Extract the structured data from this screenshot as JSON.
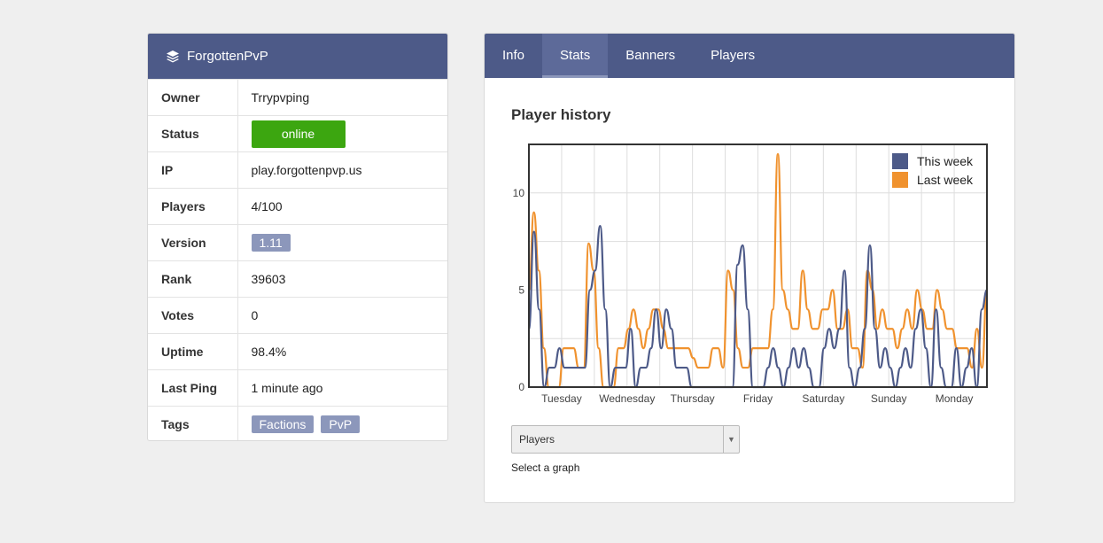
{
  "server": {
    "name": "ForgottenPvP",
    "rows": [
      {
        "label": "Owner",
        "value": "Trrypvping"
      },
      {
        "label": "Status",
        "value": "online"
      },
      {
        "label": "IP",
        "value": "play.forgottenpvp.us"
      },
      {
        "label": "Players",
        "value": "4/100"
      },
      {
        "label": "Version",
        "value": "1.11"
      },
      {
        "label": "Rank",
        "value": "39603"
      },
      {
        "label": "Votes",
        "value": "0"
      },
      {
        "label": "Uptime",
        "value": "98.4%"
      },
      {
        "label": "Last Ping",
        "value": "1 minute ago"
      },
      {
        "label": "Tags",
        "tags": [
          "Factions",
          "PvP"
        ]
      }
    ],
    "status_color": "#3ca610"
  },
  "tabs": [
    {
      "label": "Info",
      "active": false
    },
    {
      "label": "Stats",
      "active": true
    },
    {
      "label": "Banners",
      "active": false
    },
    {
      "label": "Players",
      "active": false
    }
  ],
  "stats": {
    "title": "Player history",
    "select_value": "Players",
    "select_help": "Select a graph"
  },
  "chart_data": {
    "type": "line",
    "title": "Player history",
    "x_labels": [
      "Tuesday",
      "Wednesday",
      "Thursday",
      "Friday",
      "Saturday",
      "Sunday",
      "Monday"
    ],
    "ylim": [
      0,
      12.5
    ],
    "yticks": [
      0,
      5,
      10
    ],
    "grid": true,
    "legend": "top-right",
    "series": [
      {
        "name": "This week",
        "color": "#4d5a88",
        "values": [
          3,
          8,
          4,
          0,
          1,
          1,
          2,
          1,
          1,
          1,
          1,
          1,
          5,
          6,
          8.3,
          4,
          0,
          1,
          1,
          1,
          3,
          0,
          1,
          1,
          2,
          4,
          2,
          4,
          3,
          1,
          1,
          1,
          0,
          0,
          0,
          0,
          0,
          0,
          0,
          0,
          0,
          6.3,
          7.3,
          4,
          0,
          0,
          0,
          1,
          2,
          1,
          0,
          1,
          2,
          1,
          2,
          1,
          0,
          0,
          2,
          3,
          2,
          3,
          6,
          1,
          0,
          1,
          3,
          7.3,
          3,
          1,
          2,
          1,
          0,
          1,
          2,
          1,
          3,
          4,
          2,
          0,
          4,
          1,
          0,
          0,
          2,
          0,
          1,
          2,
          0,
          4,
          5
        ]
      },
      {
        "name": "Last week",
        "color": "#f0922e",
        "values": [
          5,
          9,
          6,
          2,
          0,
          0,
          0,
          2,
          2,
          2,
          1,
          1,
          7.4,
          6,
          2,
          0,
          0,
          0,
          2,
          2,
          3,
          4,
          3,
          2,
          3,
          4,
          4,
          3,
          2,
          2,
          2,
          2,
          2,
          1.5,
          1,
          1,
          1,
          2,
          2,
          1,
          6,
          5,
          2,
          1,
          1,
          2,
          2,
          2,
          2,
          4,
          12,
          5,
          4,
          3,
          3,
          6,
          4,
          3,
          3,
          4,
          4,
          5,
          3,
          3,
          4,
          2,
          2,
          1,
          6,
          5,
          3,
          4,
          3,
          3,
          2,
          3,
          4,
          3,
          5,
          4,
          3,
          3,
          5,
          4,
          3,
          3,
          2,
          2,
          2,
          1,
          3,
          1,
          5
        ]
      }
    ]
  }
}
